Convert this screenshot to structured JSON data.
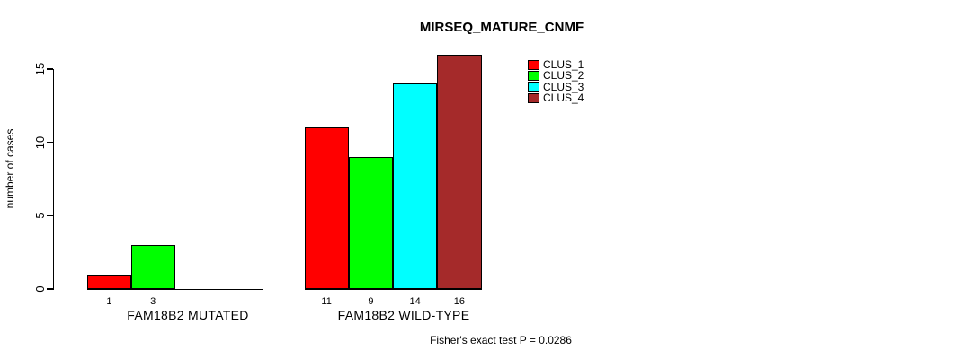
{
  "chart_data": {
    "type": "bar",
    "title": "MIRSEQ_MATURE_CNMF",
    "ylabel": "number of cases",
    "ylim": [
      0,
      16
    ],
    "yticks": [
      0,
      5,
      10,
      15
    ],
    "grid": false,
    "legend_position": "top-right",
    "series": [
      {
        "name": "CLUS_1",
        "color": "#FF0000"
      },
      {
        "name": "CLUS_2",
        "color": "#00FF00"
      },
      {
        "name": "CLUS_3",
        "color": "#00FFFF"
      },
      {
        "name": "CLUS_4",
        "color": "#A52A2A"
      }
    ],
    "groups": [
      {
        "label": "FAM18B2 MUTATED",
        "values": [
          1,
          3,
          0,
          0
        ]
      },
      {
        "label": "FAM18B2 WILD-TYPE",
        "values": [
          11,
          9,
          14,
          16
        ]
      }
    ],
    "annotation": "Fisher's exact test P = 0.0286"
  }
}
